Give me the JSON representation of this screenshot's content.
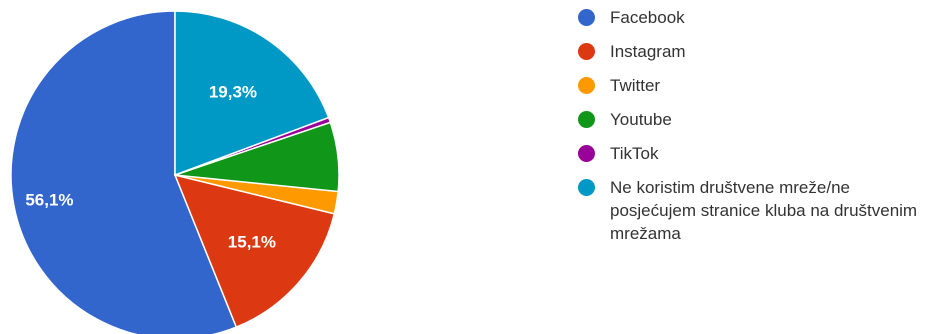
{
  "chart_data": {
    "type": "pie",
    "title": "",
    "slices": [
      {
        "name": "Facebook",
        "value": 56.1,
        "label": "56,1%",
        "color": "#3366cc"
      },
      {
        "name": "Instagram",
        "value": 15.1,
        "label": "15,1%",
        "color": "#dc3912"
      },
      {
        "name": "Twitter",
        "value": 2.2,
        "label": "",
        "color": "#ff9900"
      },
      {
        "name": "Youtube",
        "value": 6.8,
        "label": "",
        "color": "#109618"
      },
      {
        "name": "TikTok",
        "value": 0.5,
        "label": "",
        "color": "#990099"
      },
      {
        "name": "Ne koristim društvene mreže/ne posjećujem stranice kluba na društvenim mrežama",
        "value": 19.3,
        "label": "19,3%",
        "color": "#0099c6"
      }
    ],
    "legend_position": "right",
    "start_angle_deg": 90,
    "direction": "counterclockwise"
  }
}
